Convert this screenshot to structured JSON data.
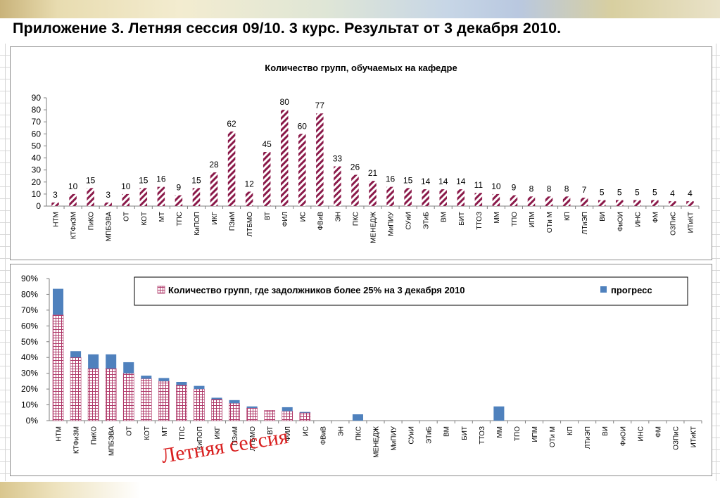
{
  "page": {
    "title": "Приложение 3. Летняя сессия 09/10.   3 курс.  Результат от 3 декабря 2010.",
    "watermark": "Летняя сессия"
  },
  "colors": {
    "hatch": "#8b1a4a",
    "grid_pattern": "#b03a6a",
    "progress": "#4f81bd",
    "watermark": "#d92020"
  },
  "chart_data": [
    {
      "type": "bar",
      "title": "Количество групп, обучаемых на кафедре",
      "categories": [
        "НТМ",
        "КТФиЗМ",
        "ПиКО",
        "МПБЭВА",
        "ОТ",
        "КОТ",
        "МТ",
        "ТПС",
        "КиПОП",
        "ИКГ",
        "ПЗиМ",
        "ЛТБМО",
        "ВТ",
        "ФИЛ",
        "ИС",
        "ФВиВ",
        "ЭН",
        "ПКС",
        "МЕНЕДЖ",
        "МиПИУ",
        "СУиИ",
        "ЭТиБ",
        "ВМ",
        "БИТ",
        "ТТОЗ",
        "ММ",
        "ТПО",
        "ИПМ",
        "ОТи М",
        "КП",
        "ЛТиЭП",
        "ВИ",
        "ФиОИ",
        "ИНС",
        "ФМ",
        "ОЗПиС",
        "ИТиКТ"
      ],
      "values": [
        3,
        10,
        15,
        3,
        10,
        15,
        16,
        9,
        15,
        28,
        62,
        12,
        45,
        80,
        60,
        77,
        33,
        26,
        21,
        16,
        15,
        14,
        14,
        14,
        11,
        10,
        9,
        8,
        8,
        8,
        7,
        5,
        5,
        5,
        5,
        4,
        4
      ],
      "ylim": [
        0,
        90
      ],
      "yticks": [
        0,
        10,
        20,
        30,
        40,
        50,
        60,
        70,
        80,
        90
      ],
      "ytick_labels": [
        "0",
        "10",
        "20",
        "30",
        "40",
        "50",
        "60",
        "70",
        "80",
        "90"
      ],
      "xlabel": "",
      "ylabel": "",
      "grid": false,
      "fill": "diagonal-hatch"
    },
    {
      "type": "bar",
      "stacked": true,
      "title": "",
      "categories": [
        "НТМ",
        "КТФиЗМ",
        "ПиКО",
        "МПБЭВА",
        "ОТ",
        "КОТ",
        "МТ",
        "ТПС",
        "КиПОП",
        "ИКГ",
        "ПЗиМ",
        "ЛТБМО",
        "ВТ",
        "ФИЛ",
        "ИС",
        "ФВиВ",
        "ЭН",
        "ПКС",
        "МЕНЕДЖ",
        "МиПИУ",
        "СУиИ",
        "ЭТиБ",
        "ВМ",
        "БИТ",
        "ТТОЗ",
        "ММ",
        "ТПО",
        "ИПМ",
        "ОТи М",
        "КП",
        "ЛТиЭП",
        "ВИ",
        "ФиОИ",
        "ИНС",
        "ФМ",
        "ОЗПиС",
        "ИТиКТ"
      ],
      "series": [
        {
          "name": "Количество групп, где задолжников более  25% на 3 декабря 2010",
          "values": [
            67,
            40,
            33,
            33,
            30,
            26.5,
            25,
            22.5,
            20,
            13.5,
            11,
            8,
            6.5,
            6,
            5,
            0,
            0,
            0,
            0,
            0,
            0,
            0,
            0,
            0,
            0,
            0,
            0,
            0,
            0,
            0,
            0,
            0,
            0,
            0,
            0,
            0,
            0
          ]
        },
        {
          "name": "прогресс",
          "values": [
            16.5,
            4,
            9,
            9,
            7,
            2,
            2,
            2,
            2,
            1,
            2,
            1,
            0,
            2.5,
            0.5,
            0,
            0,
            4,
            0,
            0,
            0,
            0,
            0,
            0,
            0,
            9,
            0,
            0,
            0,
            0,
            0,
            0,
            0,
            0,
            0,
            0,
            0
          ]
        }
      ],
      "ylim": [
        0,
        90
      ],
      "yticks": [
        0,
        10,
        20,
        30,
        40,
        50,
        60,
        70,
        80,
        90
      ],
      "ytick_labels": [
        "0%",
        "10%",
        "20%",
        "30%",
        "40%",
        "50%",
        "60%",
        "70%",
        "80%",
        "90%"
      ],
      "xlabel": "",
      "ylabel": "",
      "grid": false,
      "legend": "top-right"
    }
  ]
}
